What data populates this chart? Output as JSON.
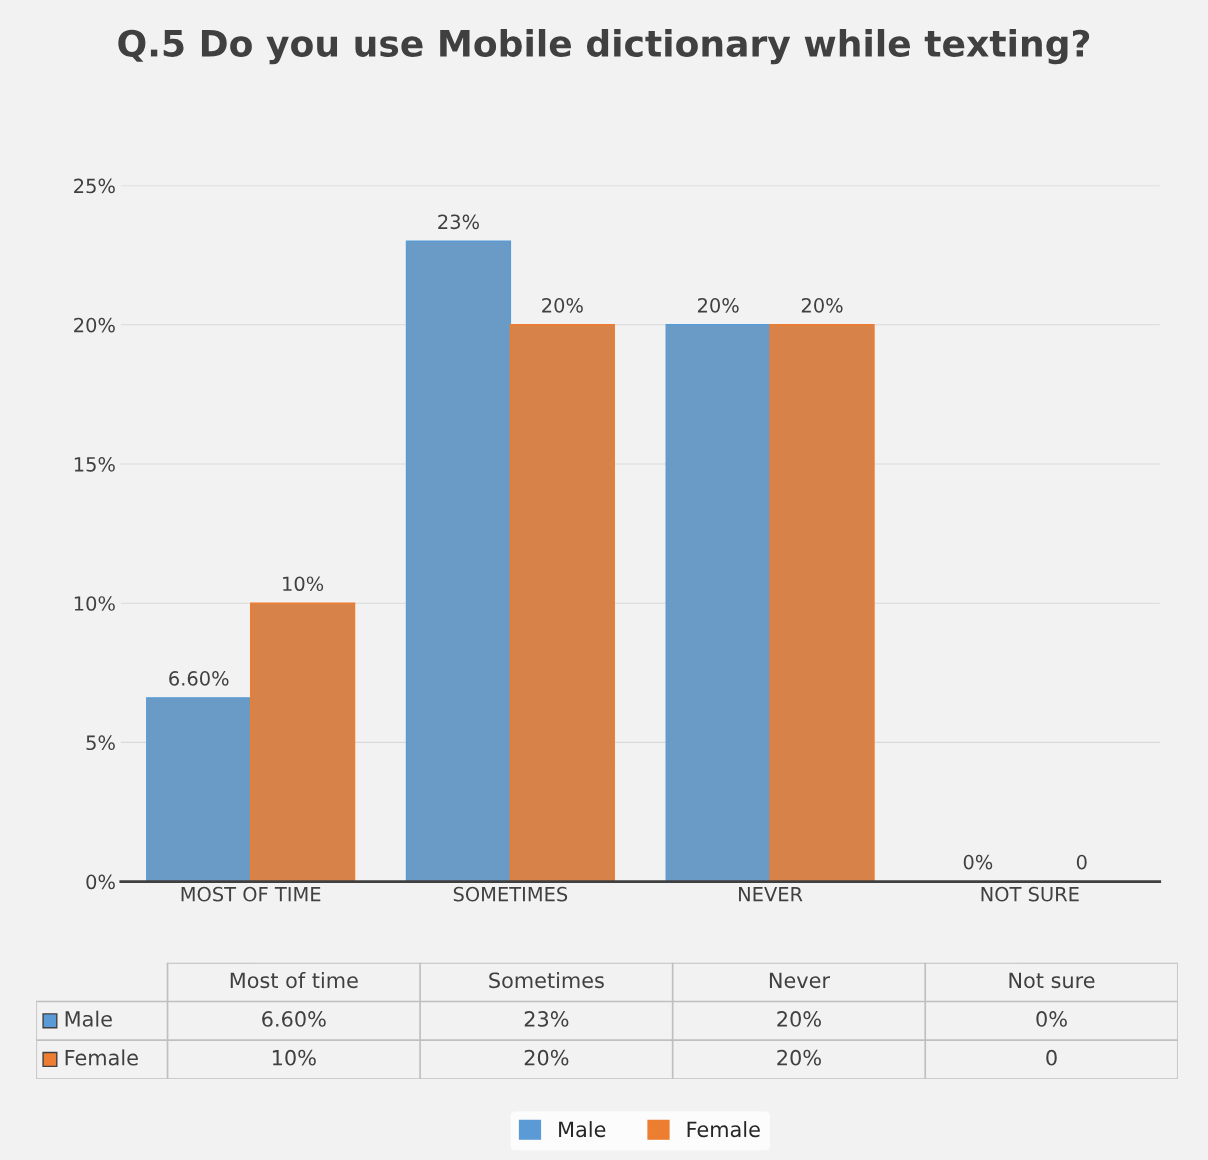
{
  "chart_data": {
    "type": "bar",
    "title": "Q.5 Do you use Mobile dictionary while texting?",
    "categories": [
      "MOST OF TIME",
      "SOMETIMES",
      "NEVER",
      "NOT SURE"
    ],
    "series": [
      {
        "name": "Male",
        "color": "#5b9bd5",
        "values": [
          6.6,
          23,
          20,
          0
        ],
        "value_labels": [
          "6.60%",
          "23%",
          "20%",
          "0%"
        ]
      },
      {
        "name": "Female",
        "color": "#ed7d31",
        "values": [
          10,
          20,
          20,
          0
        ],
        "value_labels": [
          "10%",
          "20%",
          "20%",
          "0"
        ]
      }
    ],
    "annotations": [
      "Most of time",
      "Sometimes",
      "Never",
      "Not sure"
    ],
    "ylim": [
      0,
      25
    ],
    "yticks": [
      {
        "value": 0,
        "label": "0%"
      },
      {
        "value": 5,
        "label": "5%"
      },
      {
        "value": 10,
        "label": "10%"
      },
      {
        "value": 15,
        "label": "15%"
      },
      {
        "value": 20,
        "label": "20%"
      },
      {
        "value": 25,
        "label": "25%"
      }
    ],
    "grid": "y",
    "legend": "bottom"
  }
}
